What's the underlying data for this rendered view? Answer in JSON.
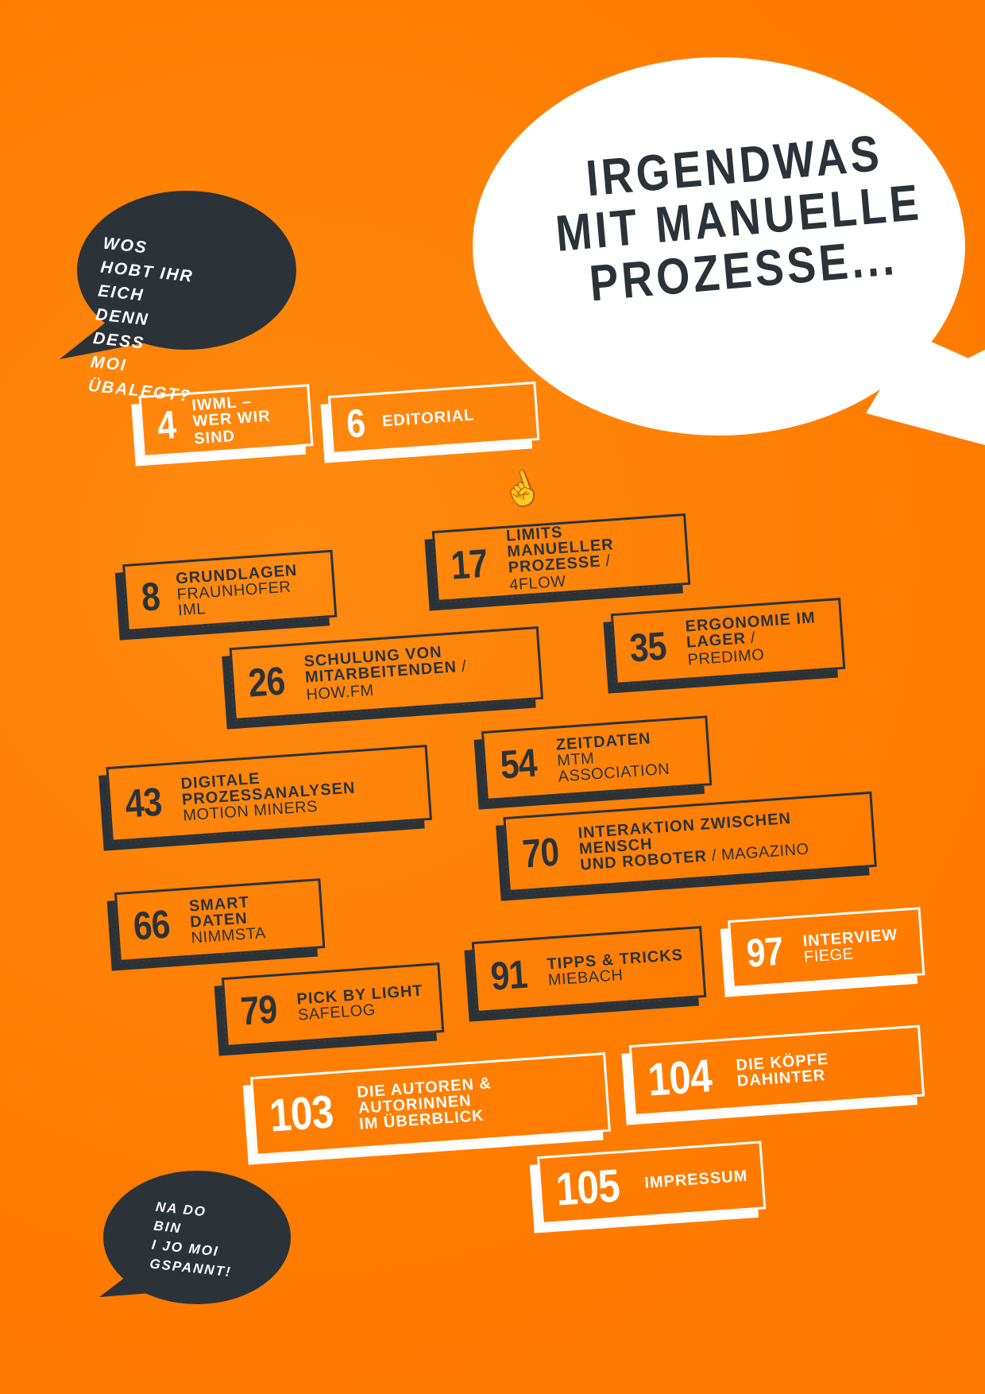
{
  "headline_bubble": {
    "lines": [
      "IRGENDWAS",
      "MIT MANUELLE",
      "PROZESSE..."
    ]
  },
  "question_bubble": {
    "lines": [
      "WOS HOBT IHR",
      "EICH DENN DESS",
      "MOI ÜBALEGT?"
    ]
  },
  "answer_bubble": {
    "lines": [
      "NA DO BIN",
      "I JO MOI",
      "GSPANNT!"
    ]
  },
  "colors": {
    "background": "#ff7f00",
    "dark": "#2b3339",
    "light": "#ffffff"
  },
  "toc": [
    {
      "page": "4",
      "title": "IWML –",
      "title2": "WER WIR SIND",
      "subtitle": "",
      "style": "light"
    },
    {
      "page": "6",
      "title": "EDITORIAL",
      "title2": "",
      "subtitle": "",
      "style": "light"
    },
    {
      "page": "8",
      "title": "GRUNDLAGEN",
      "title2": "",
      "subtitle": "FRAUNHOFER IML",
      "style": "dark"
    },
    {
      "page": "17",
      "title": "LIMITS MANUELLER",
      "title2": "PROZESSE",
      "subtitle": " / 4FLOW",
      "style": "dark"
    },
    {
      "page": "26",
      "title": "SCHULUNG VON",
      "title2": "MITARBEITENDEN",
      "subtitle": " / HOW.FM",
      "style": "dark"
    },
    {
      "page": "35",
      "title": "ERGONOMIE IM",
      "title2": "LAGER",
      "subtitle": " / PREDIMO",
      "style": "dark"
    },
    {
      "page": "43",
      "title": "DIGITALE PROZESSANALYSEN",
      "title2": "",
      "subtitle": "MOTION MINERS",
      "style": "dark"
    },
    {
      "page": "54",
      "title": "ZEITDATEN",
      "title2": "",
      "subtitle": "MTM ASSOCIATION",
      "style": "dark"
    },
    {
      "page": "70",
      "title": "INTERAKTION ZWISCHEN MENSCH",
      "title2": "UND ROBOTER",
      "subtitle": " / MAGAZINO",
      "style": "dark"
    },
    {
      "page": "66",
      "title": "SMART DATEN",
      "title2": "",
      "subtitle": "NIMMSTA",
      "style": "dark"
    },
    {
      "page": "79",
      "title": "PICK BY LIGHT",
      "title2": "",
      "subtitle": "SAFELOG",
      "style": "dark"
    },
    {
      "page": "91",
      "title": "TIPPS & TRICKS",
      "title2": "",
      "subtitle": "MIEBACH",
      "style": "dark"
    },
    {
      "page": "97",
      "title": "INTERVIEW",
      "title2": "",
      "subtitle": "FIEGE",
      "style": "light"
    },
    {
      "page": "103",
      "title": "DIE AUTOREN & AUTORINNEN",
      "title2": "IM ÜBERBLICK",
      "subtitle": "",
      "style": "light"
    },
    {
      "page": "104",
      "title": "DIE KÖPFE DAHINTER",
      "title2": "",
      "subtitle": "",
      "style": "light"
    },
    {
      "page": "105",
      "title": "IMPRESSUM",
      "title2": "",
      "subtitle": "",
      "style": "light"
    }
  ]
}
